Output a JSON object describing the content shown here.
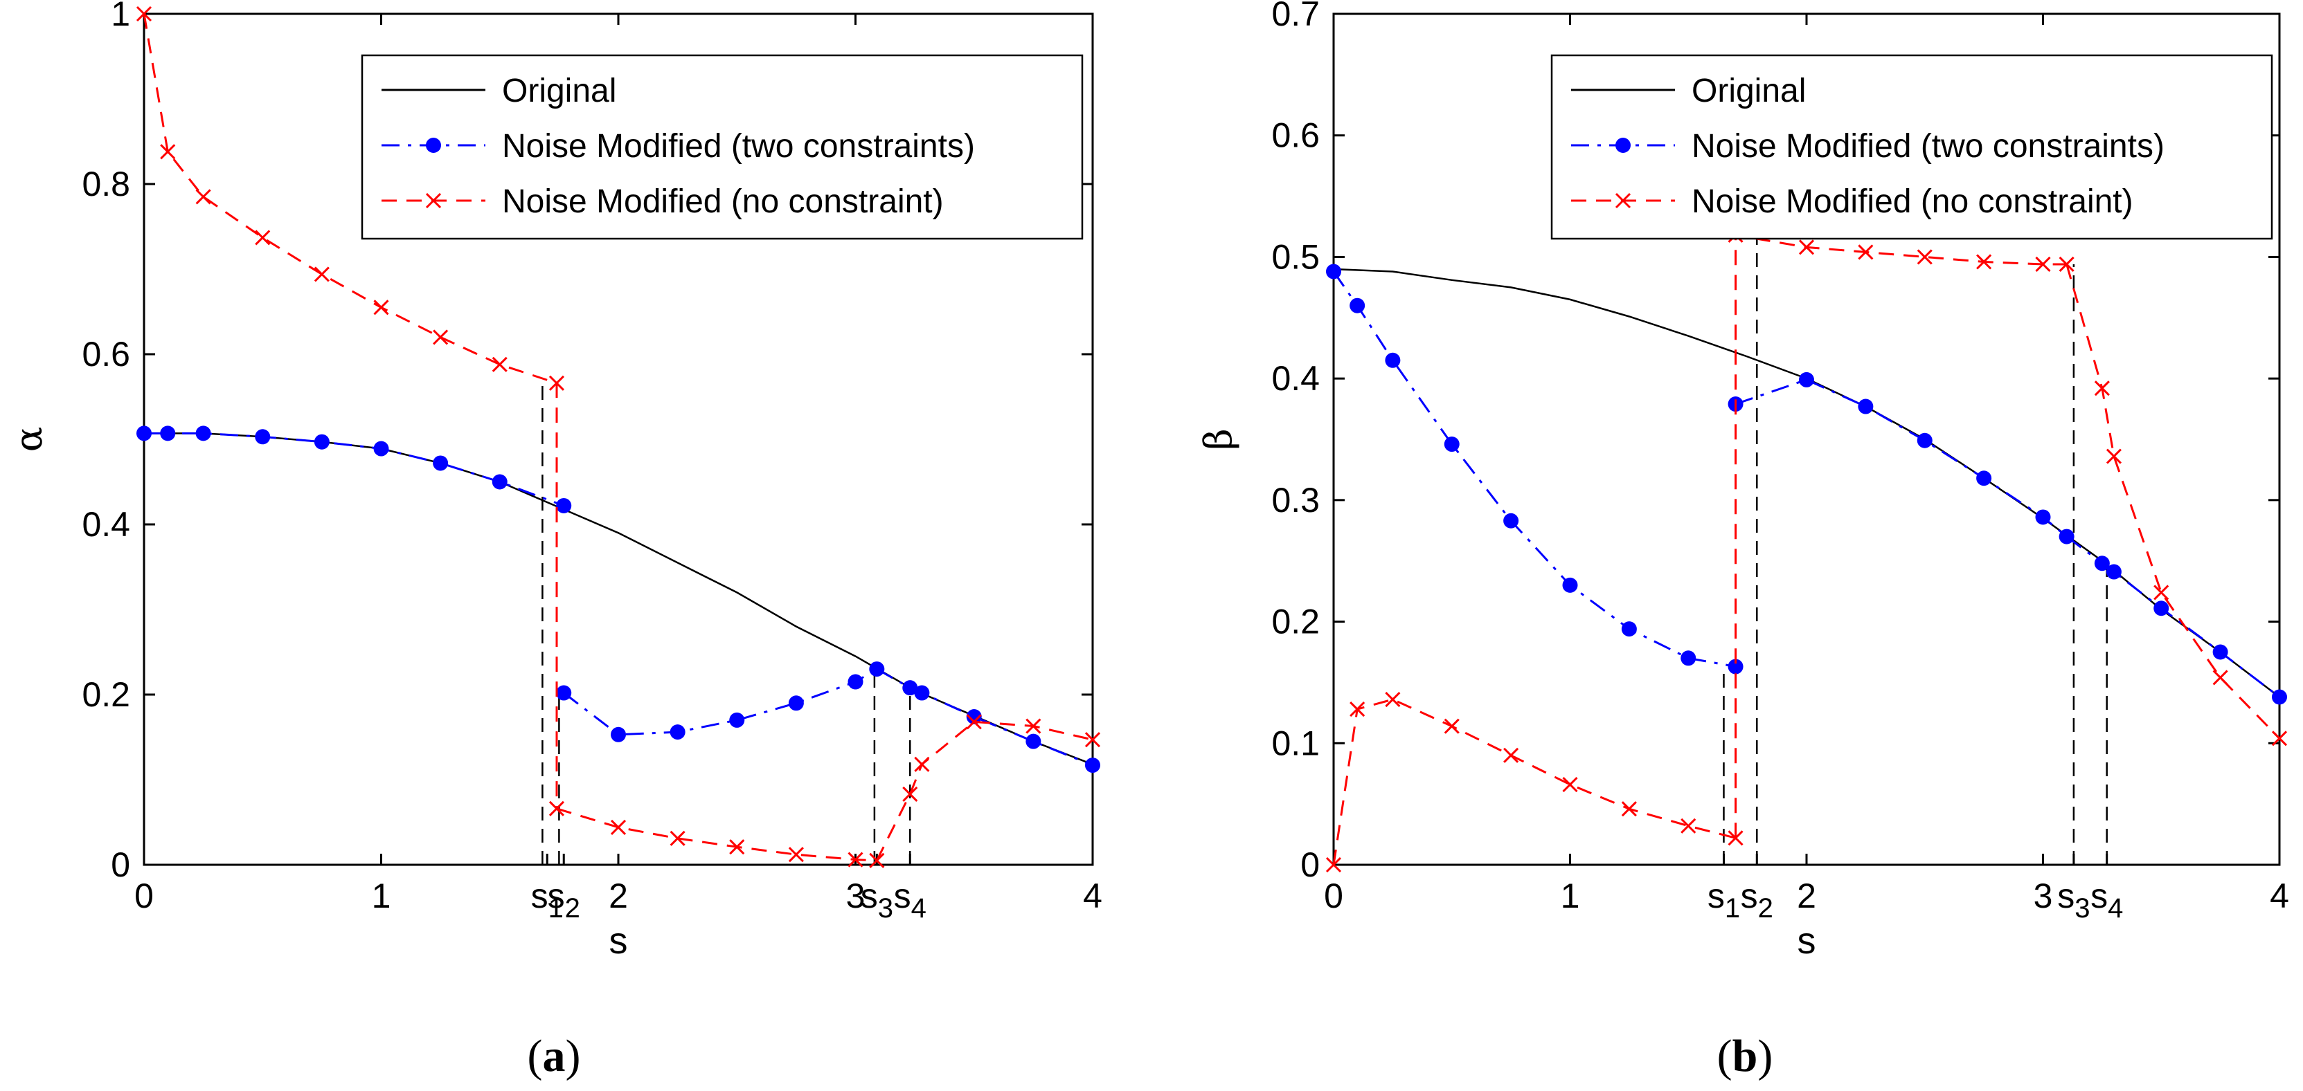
{
  "chart_data": [
    {
      "type": "line",
      "panel_label": "a",
      "xlabel": "s",
      "ylabel": "α",
      "xlim": [
        0,
        4
      ],
      "ylim": [
        0,
        1
      ],
      "xticks": [
        0,
        1,
        2,
        3,
        4
      ],
      "xtick_labels": [
        "0",
        "1",
        "2",
        "3",
        "4"
      ],
      "yticks": [
        0,
        0.2,
        0.4,
        0.6,
        0.8,
        1
      ],
      "ytick_labels": [
        "0",
        "0.2",
        "0.4",
        "0.6",
        "0.8",
        "1"
      ],
      "special_ticks": [
        {
          "label": "s",
          "sub": "1",
          "x": 1.7
        },
        {
          "label": "s",
          "sub": "2",
          "x": 1.77
        },
        {
          "label": "s",
          "sub": "3",
          "x": 3.09
        },
        {
          "label": "s",
          "sub": "4",
          "x": 3.23
        }
      ],
      "legend_position": "top-right",
      "series": [
        {
          "name": "Original",
          "color": "#000000",
          "style": "solid",
          "marker": "none",
          "x": [
            0,
            0.25,
            0.5,
            0.75,
            1,
            1.25,
            1.5,
            1.75,
            2,
            2.25,
            2.5,
            2.75,
            3,
            3.25,
            3.5,
            3.75,
            4
          ],
          "y": [
            0.507,
            0.507,
            0.503,
            0.497,
            0.489,
            0.472,
            0.45,
            0.42,
            0.39,
            0.355,
            0.32,
            0.28,
            0.245,
            0.205,
            0.175,
            0.145,
            0.118
          ]
        },
        {
          "name": "Noise Modified (two constraints)",
          "color": "#0000ff",
          "style": "dash-dot",
          "marker": "dot",
          "segments": [
            {
              "x": [
                0,
                0.1,
                0.25,
                0.5,
                0.75,
                1,
                1.25,
                1.5,
                1.77
              ],
              "y": [
                0.507,
                0.507,
                0.507,
                0.503,
                0.497,
                0.489,
                0.472,
                0.45,
                0.422
              ]
            },
            {
              "x": [
                1.77,
                2,
                2.25,
                2.5,
                2.75,
                3,
                3.09
              ],
              "y": [
                0.202,
                0.153,
                0.156,
                0.17,
                0.19,
                0.215,
                0.23
              ]
            },
            {
              "x": [
                3.09,
                3.23,
                3.28,
                3.5,
                3.75,
                4
              ],
              "y": [
                0.23,
                0.208,
                0.202,
                0.174,
                0.145,
                0.117
              ]
            }
          ],
          "markers": {
            "x": [
              0,
              0.1,
              0.25,
              0.5,
              0.75,
              1,
              1.25,
              1.5,
              1.77,
              1.77,
              2,
              2.25,
              2.5,
              2.75,
              3,
              3.09,
              3.23,
              3.28,
              3.5,
              3.75,
              4
            ],
            "y": [
              0.507,
              0.507,
              0.507,
              0.503,
              0.497,
              0.489,
              0.472,
              0.45,
              0.422,
              0.202,
              0.153,
              0.156,
              0.17,
              0.19,
              0.215,
              0.23,
              0.208,
              0.202,
              0.174,
              0.145,
              0.117
            ]
          }
        },
        {
          "name": "Noise Modified (no constraint)",
          "color": "#ff0000",
          "style": "dashed",
          "marker": "x",
          "segments": [
            {
              "x": [
                0,
                0.1,
                0.25,
                0.5,
                0.75,
                1,
                1.25,
                1.5,
                1.74,
                1.74
              ],
              "y": [
                1.0,
                0.838,
                0.785,
                0.737,
                0.694,
                0.655,
                0.62,
                0.588,
                0.566,
                0.066
              ]
            },
            {
              "x": [
                1.74,
                2,
                2.25,
                2.5,
                2.75,
                3,
                3.09
              ],
              "y": [
                0.066,
                0.044,
                0.031,
                0.021,
                0.012,
                0.006,
                0.005
              ]
            },
            {
              "x": [
                3.09,
                3.23,
                3.28,
                3.5,
                3.75,
                4
              ],
              "y": [
                0.005,
                0.083,
                0.118,
                0.168,
                0.163,
                0.147
              ]
            }
          ],
          "markers": {
            "x": [
              0,
              0.1,
              0.25,
              0.5,
              0.75,
              1,
              1.25,
              1.5,
              1.74,
              1.74,
              2,
              2.25,
              2.5,
              2.75,
              3,
              3.09,
              3.23,
              3.28,
              3.5,
              3.75,
              4
            ],
            "y": [
              1.0,
              0.838,
              0.785,
              0.737,
              0.694,
              0.655,
              0.62,
              0.588,
              0.566,
              0.066,
              0.044,
              0.031,
              0.021,
              0.012,
              0.006,
              0.005,
              0.083,
              0.118,
              0.168,
              0.163,
              0.147
            ]
          }
        }
      ],
      "guides": [
        {
          "x": 1.68,
          "y0": 0,
          "y1": 0.566
        },
        {
          "x": 1.75,
          "y0": 0,
          "y1": 0.202
        },
        {
          "x": 3.08,
          "y0": 0,
          "y1": 0.23
        },
        {
          "x": 3.23,
          "y0": 0,
          "y1": 0.208
        }
      ]
    },
    {
      "type": "line",
      "panel_label": "b",
      "xlabel": "s",
      "ylabel": "β",
      "xlim": [
        0,
        4
      ],
      "ylim": [
        0,
        0.7
      ],
      "xticks": [
        0,
        1,
        2,
        3,
        4
      ],
      "xtick_labels": [
        "0",
        "1",
        "2",
        "3",
        "4"
      ],
      "yticks": [
        0,
        0.1,
        0.2,
        0.3,
        0.4,
        0.5,
        0.6,
        0.7
      ],
      "ytick_labels": [
        "0",
        "0.1",
        "0.2",
        "0.3",
        "0.4",
        "0.5",
        "0.6",
        "0.7"
      ],
      "special_ticks": [
        {
          "label": "s",
          "sub": "1",
          "x": 1.65
        },
        {
          "label": "s",
          "sub": "2",
          "x": 1.79
        },
        {
          "label": "s",
          "sub": "3",
          "x": 3.13
        },
        {
          "label": "s",
          "sub": "4",
          "x": 3.27
        }
      ],
      "legend_position": "top-right",
      "series": [
        {
          "name": "Original",
          "color": "#000000",
          "style": "solid",
          "marker": "none",
          "x": [
            0,
            0.25,
            0.5,
            0.75,
            1,
            1.25,
            1.5,
            1.75,
            2,
            2.25,
            2.5,
            2.75,
            3,
            3.25,
            3.5,
            3.75,
            4
          ],
          "y": [
            0.49,
            0.488,
            0.481,
            0.475,
            0.465,
            0.451,
            0.435,
            0.418,
            0.4,
            0.377,
            0.35,
            0.318,
            0.285,
            0.25,
            0.21,
            0.175,
            0.138
          ]
        },
        {
          "name": "Noise Modified (two constraints)",
          "color": "#0000ff",
          "style": "dash-dot",
          "marker": "dot",
          "segments": [
            {
              "x": [
                0,
                0.1,
                0.25,
                0.5,
                0.75,
                1,
                1.25,
                1.5,
                1.7
              ],
              "y": [
                0.488,
                0.46,
                0.415,
                0.346,
                0.283,
                0.23,
                0.194,
                0.17,
                0.163
              ]
            },
            {
              "x": [
                1.7,
                2,
                2.25,
                2.5,
                2.75,
                3,
                3.1
              ],
              "y": [
                0.379,
                0.399,
                0.377,
                0.349,
                0.318,
                0.286,
                0.27
              ]
            },
            {
              "x": [
                3.1,
                3.25,
                3.3,
                3.5,
                3.75,
                4
              ],
              "y": [
                0.27,
                0.248,
                0.241,
                0.211,
                0.175,
                0.138
              ]
            }
          ],
          "markers": {
            "x": [
              0,
              0.1,
              0.25,
              0.5,
              0.75,
              1,
              1.25,
              1.5,
              1.7,
              1.7,
              2,
              2.25,
              2.5,
              2.75,
              3,
              3.1,
              3.25,
              3.3,
              3.5,
              3.75,
              4
            ],
            "y": [
              0.488,
              0.46,
              0.415,
              0.346,
              0.283,
              0.23,
              0.194,
              0.17,
              0.163,
              0.379,
              0.399,
              0.377,
              0.349,
              0.318,
              0.286,
              0.27,
              0.248,
              0.241,
              0.211,
              0.175,
              0.138
            ]
          }
        },
        {
          "name": "Noise Modified (no constraint)",
          "color": "#ff0000",
          "style": "dashed",
          "marker": "x",
          "segments": [
            {
              "x": [
                0,
                0.1,
                0.25,
                0.5,
                0.75,
                1,
                1.25,
                1.5,
                1.7
              ],
              "y": [
                0.0,
                0.128,
                0.136,
                0.114,
                0.09,
                0.066,
                0.046,
                0.032,
                0.022
              ]
            },
            {
              "x": [
                1.7,
                1.7,
                2,
                2.25,
                2.5,
                2.75,
                3,
                3.1
              ],
              "y": [
                0.022,
                0.518,
                0.508,
                0.504,
                0.5,
                0.496,
                0.494,
                0.494
              ]
            },
            {
              "x": [
                3.1,
                3.25,
                3.3,
                3.5,
                3.75,
                4
              ],
              "y": [
                0.494,
                0.392,
                0.336,
                0.224,
                0.154,
                0.104
              ]
            }
          ],
          "markers": {
            "x": [
              0,
              0.1,
              0.25,
              0.5,
              0.75,
              1,
              1.25,
              1.5,
              1.7,
              1.7,
              2,
              2.25,
              2.5,
              2.75,
              3,
              3.1,
              3.25,
              3.3,
              3.5,
              3.75,
              4
            ],
            "y": [
              0.0,
              0.128,
              0.136,
              0.114,
              0.09,
              0.066,
              0.046,
              0.032,
              0.022,
              0.518,
              0.508,
              0.504,
              0.5,
              0.496,
              0.494,
              0.494,
              0.392,
              0.336,
              0.224,
              0.154,
              0.104
            ]
          }
        }
      ],
      "guides": [
        {
          "x": 1.65,
          "y0": 0,
          "y1": 0.163
        },
        {
          "x": 1.79,
          "y0": 0,
          "y1": 0.518
        },
        {
          "x": 3.13,
          "y0": 0,
          "y1": 0.494
        },
        {
          "x": 3.27,
          "y0": 0,
          "y1": 0.248
        }
      ]
    }
  ]
}
